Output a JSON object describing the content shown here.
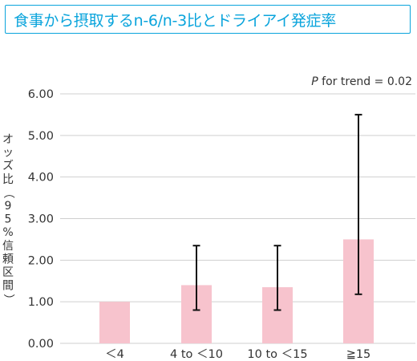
{
  "title": "食事から摂取するn-6/n-3比とドライアイ発症率",
  "chart_data": {
    "type": "bar",
    "categories": [
      "＜4",
      "4 to ＜10",
      "10 to ＜15",
      "≧15"
    ],
    "values": [
      1.0,
      1.4,
      1.35,
      2.5
    ],
    "error_low": [
      null,
      0.8,
      0.8,
      1.18
    ],
    "error_high": [
      null,
      2.35,
      2.35,
      5.5
    ],
    "ylabel": "オッズ比（95%信頼区間）",
    "xlabel": "",
    "ylim": [
      0,
      6
    ],
    "yticks": [
      "0.00",
      "1.00",
      "2.00",
      "3.00",
      "4.00",
      "5.00",
      "6.00"
    ],
    "annotation": {
      "italic": "P",
      "rest": " for trend = 0.02"
    },
    "grid": "horizontal",
    "bar_color": "#f7c3cd",
    "error_color": "#111111",
    "grid_color": "#cfcfcf"
  }
}
